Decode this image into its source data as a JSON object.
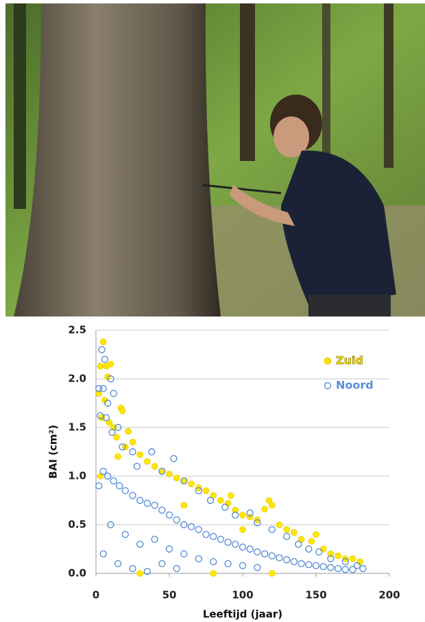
{
  "chart_data": {
    "type": "scatter",
    "x_label": "Leeftijd (jaar)",
    "y_label": "BAI (cm²)",
    "xlim": [
      0,
      200
    ],
    "ylim": [
      0,
      2.5
    ],
    "xticks": [
      0,
      50,
      100,
      150,
      200
    ],
    "yticks": [
      {
        "value": 0,
        "label": "0.0"
      },
      0.5,
      {
        "value": 1,
        "label": "1.0"
      },
      1.5,
      {
        "value": 2,
        "label": "2.0"
      },
      2.5
    ],
    "grid": true,
    "legend": "upper right",
    "series": [
      {
        "name": "Zuid",
        "color": "#ffe600",
        "marker": "filled",
        "x": [
          5,
          3,
          7,
          10,
          8,
          2,
          6,
          17,
          18,
          4,
          9,
          12,
          22,
          14,
          25,
          20,
          30,
          35,
          40,
          45,
          50,
          55,
          60,
          65,
          70,
          75,
          80,
          85,
          90,
          92,
          95,
          100,
          105,
          110,
          115,
          118,
          120,
          125,
          130,
          135,
          140,
          147,
          150,
          155,
          160,
          165,
          170,
          175,
          180,
          30,
          80,
          120,
          3,
          15,
          60,
          100
        ],
        "y": [
          2.38,
          2.13,
          2.13,
          2.15,
          2.02,
          1.85,
          1.78,
          1.7,
          1.67,
          1.6,
          1.55,
          1.5,
          1.46,
          1.4,
          1.35,
          1.3,
          1.22,
          1.15,
          1.1,
          1.05,
          1.02,
          0.98,
          0.95,
          0.92,
          0.88,
          0.85,
          0.8,
          0.75,
          0.72,
          0.8,
          0.65,
          0.6,
          0.58,
          0.55,
          0.66,
          0.75,
          0.7,
          0.5,
          0.45,
          0.42,
          0.35,
          0.33,
          0.4,
          0.25,
          0.2,
          0.18,
          0.15,
          0.15,
          0.12,
          0,
          0,
          0,
          1,
          1.2,
          0.7,
          0.45
        ]
      },
      {
        "name": "Noord",
        "color": "#5b8fd6",
        "marker": "open",
        "x": [
          4,
          6,
          2,
          5,
          10,
          12,
          8,
          3,
          7,
          15,
          11,
          18,
          25,
          38,
          53,
          28,
          45,
          60,
          70,
          78,
          88,
          95,
          105,
          110,
          120,
          130,
          138,
          145,
          152,
          160,
          170,
          178,
          182,
          2,
          5,
          8,
          12,
          16,
          20,
          25,
          30,
          35,
          40,
          45,
          50,
          55,
          60,
          65,
          70,
          75,
          80,
          85,
          90,
          95,
          100,
          105,
          110,
          115,
          120,
          125,
          130,
          135,
          140,
          145,
          150,
          155,
          160,
          165,
          170,
          175,
          10,
          20,
          30,
          40,
          50,
          60,
          70,
          80,
          90,
          100,
          110,
          5,
          15,
          25,
          35,
          45,
          55
        ],
        "y": [
          2.3,
          2.2,
          1.9,
          1.9,
          2,
          1.85,
          1.75,
          1.62,
          1.6,
          1.5,
          1.45,
          1.3,
          1.25,
          1.25,
          1.18,
          1.1,
          1.05,
          0.95,
          0.85,
          0.75,
          0.68,
          0.6,
          0.62,
          0.52,
          0.45,
          0.38,
          0.3,
          0.25,
          0.22,
          0.15,
          0.12,
          0.08,
          0.05,
          0.9,
          1.05,
          1,
          0.95,
          0.9,
          0.85,
          0.8,
          0.75,
          0.72,
          0.7,
          0.65,
          0.6,
          0.55,
          0.5,
          0.48,
          0.45,
          0.4,
          0.38,
          0.35,
          0.32,
          0.3,
          0.27,
          0.25,
          0.22,
          0.2,
          0.18,
          0.16,
          0.14,
          0.12,
          0.1,
          0.09,
          0.08,
          0.07,
          0.06,
          0.05,
          0.04,
          0.04,
          0.5,
          0.4,
          0.3,
          0.35,
          0.25,
          0.2,
          0.15,
          0.12,
          0.1,
          0.08,
          0.06,
          0.2,
          0.1,
          0.05,
          0.02,
          0.1,
          0.05
        ]
      }
    ]
  }
}
